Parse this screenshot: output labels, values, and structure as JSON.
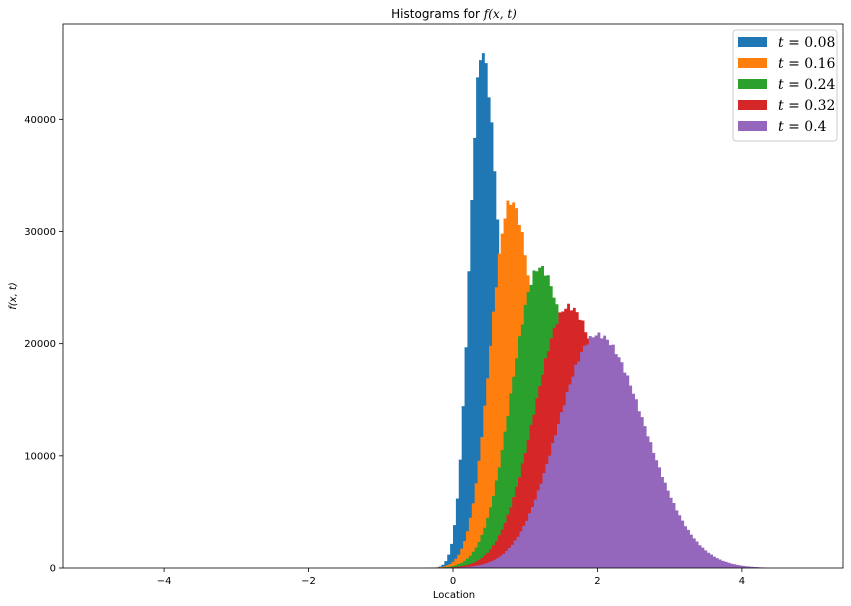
{
  "chart_data": {
    "type": "histogram",
    "title": "Histograms for f(x, t)",
    "title_parts": {
      "prefix": "Histograms for ",
      "math": "f(x, t)"
    },
    "xlabel": "Location",
    "ylabel": "f(x, t)",
    "xlim": [
      -5.4,
      5.4
    ],
    "ylim": [
      0,
      48500
    ],
    "xticks": [
      -4,
      -2,
      0,
      2,
      4
    ],
    "xtick_labels": [
      "−4",
      "−2",
      "0",
      "2",
      "4"
    ],
    "yticks": [
      0,
      10000,
      20000,
      30000,
      40000
    ],
    "ytick_labels": [
      "0",
      "10000",
      "20000",
      "30000",
      "40000"
    ],
    "grid": false,
    "legend_position": "top-right",
    "series": [
      {
        "name": "t = 0.08",
        "label_math": "t = 0.08",
        "color": "#1f77b4",
        "peak_x": 0.4,
        "peak_y": 46000,
        "x_min": -0.6,
        "x_max": 1.4,
        "spread_left": 0.17,
        "spread_right": 0.25
      },
      {
        "name": "t = 0.16",
        "label_math": "t = 0.16",
        "color": "#ff7f0e",
        "peak_x": 0.8,
        "peak_y": 32700,
        "x_min": -0.7,
        "x_max": 1.9,
        "spread_left": 0.28,
        "spread_right": 0.36
      },
      {
        "name": "t = 0.24",
        "label_math": "t = 0.24",
        "color": "#2ca02c",
        "peak_x": 1.2,
        "peak_y": 26800,
        "x_min": -0.7,
        "x_max": 2.5,
        "spread_left": 0.38,
        "spread_right": 0.45
      },
      {
        "name": "t = 0.32",
        "label_math": "t = 0.32",
        "color": "#d62728",
        "peak_x": 1.6,
        "peak_y": 23300,
        "x_min": -0.7,
        "x_max": 3.1,
        "spread_left": 0.47,
        "spread_right": 0.55
      },
      {
        "name": "t = 0.4",
        "label_math": "t = 0.4",
        "color": "#9467bd",
        "peak_x": 2.0,
        "peak_y": 20800,
        "x_min": -0.8,
        "x_max": 4.35,
        "spread_left": 0.55,
        "spread_right": 0.66
      }
    ]
  }
}
